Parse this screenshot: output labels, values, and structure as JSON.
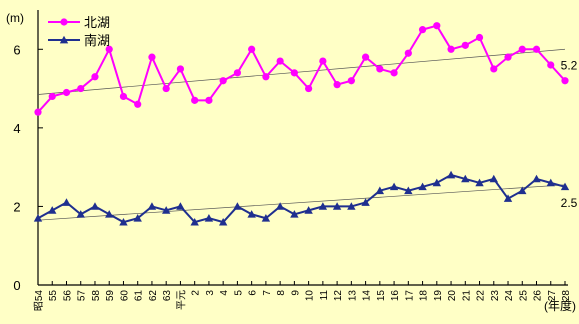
{
  "chart_data": {
    "type": "line",
    "ylabel": "(m)",
    "xlabel": "(年度)",
    "ylim": [
      0,
      7
    ],
    "yticks": [
      0,
      2,
      4,
      6
    ],
    "categories": [
      "昭54",
      "55",
      "56",
      "57",
      "58",
      "59",
      "60",
      "61",
      "62",
      "63",
      "平元",
      "2",
      "3",
      "4",
      "5",
      "6",
      "7",
      "8",
      "9",
      "10",
      "11",
      "12",
      "13",
      "14",
      "15",
      "16",
      "17",
      "18",
      "19",
      "20",
      "21",
      "22",
      "23",
      "24",
      "25",
      "26",
      "27",
      "28"
    ],
    "series": [
      {
        "name": "北湖",
        "color": "#ff00ff",
        "marker": "circle",
        "values": [
          4.4,
          4.8,
          4.9,
          5.0,
          5.3,
          6.0,
          4.8,
          4.6,
          5.8,
          5.0,
          5.5,
          4.7,
          4.7,
          5.2,
          5.4,
          6.0,
          5.3,
          5.7,
          5.4,
          5.0,
          5.7,
          5.1,
          5.2,
          5.8,
          5.5,
          5.4,
          5.9,
          6.5,
          6.6,
          6.0,
          6.1,
          6.3,
          5.5,
          5.8,
          6.0,
          6.0,
          5.6,
          5.2
        ],
        "end_label": "5.2",
        "trend": [
          4.85,
          6.0
        ]
      },
      {
        "name": "南湖",
        "color": "#1f2f8f",
        "marker": "triangle",
        "values": [
          1.7,
          1.9,
          2.1,
          1.8,
          2.0,
          1.8,
          1.6,
          1.7,
          2.0,
          1.9,
          2.0,
          1.6,
          1.7,
          1.6,
          2.0,
          1.8,
          1.7,
          2.0,
          1.8,
          1.9,
          2.0,
          2.0,
          2.0,
          2.1,
          2.4,
          2.5,
          2.4,
          2.5,
          2.6,
          2.8,
          2.7,
          2.6,
          2.7,
          2.2,
          2.4,
          2.7,
          2.6,
          2.5
        ],
        "end_label": "2.5",
        "trend": [
          1.65,
          2.55
        ]
      }
    ],
    "legend": "top-left",
    "grid": false
  }
}
